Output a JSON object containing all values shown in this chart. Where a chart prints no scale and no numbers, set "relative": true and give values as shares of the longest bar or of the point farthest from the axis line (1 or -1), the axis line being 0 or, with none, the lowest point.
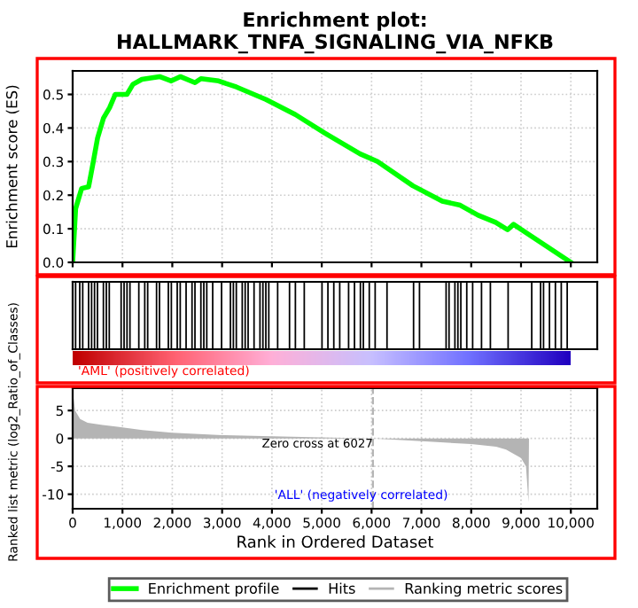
{
  "chart_data": [
    {
      "type": "line",
      "title": "Enrichment plot:\nHALLMARK_TNFA_SIGNALING_VIA_NFKB",
      "ylabel": "Enrichment score (ES)",
      "series": [
        {
          "name": "Enrichment profile",
          "color": "#00ff00",
          "x": [
            0,
            60,
            180,
            320,
            415,
            500,
            620,
            740,
            855,
            1090,
            1210,
            1390,
            1745,
            1980,
            2160,
            2455,
            2575,
            2930,
            3290,
            3880,
            4470,
            5060,
            5770,
            6120,
            6830,
            7420,
            7780,
            8140,
            8490,
            8730,
            8850,
            10000
          ],
          "values": [
            0,
            0.16,
            0.22,
            0.225,
            0.3,
            0.37,
            0.43,
            0.46,
            0.5,
            0.5,
            0.53,
            0.545,
            0.553,
            0.54,
            0.553,
            0.535,
            0.547,
            0.54,
            0.522,
            0.485,
            0.44,
            0.385,
            0.323,
            0.3,
            0.228,
            0.182,
            0.17,
            0.14,
            0.119,
            0.097,
            0.113,
            0
          ]
        }
      ],
      "xlim": [
        0,
        10530
      ],
      "xticks": [
        0,
        1000,
        2000,
        3000,
        4000,
        5000,
        6000,
        7000,
        8000,
        9000,
        10000
      ],
      "ylim": [
        0,
        0.57
      ],
      "yticks": [
        {
          "value": 0,
          "label": "0.0"
        },
        0.1,
        0.2,
        0.3,
        0.4,
        0.5
      ],
      "grid": true,
      "tick_labels": "y"
    },
    {
      "type": "bar",
      "relative": true,
      "ylabel": "Ranked list metric (log2_Ratio_of_Classes)",
      "annotations": [
        "'AML' (positively correlated)"
      ],
      "series": [
        {
          "name": "Hits",
          "color": "#000000",
          "x": [
            59,
            142,
            202,
            320,
            380,
            439,
            498,
            617,
            676,
            735,
            973,
            1032,
            1091,
            1150,
            1328,
            1447,
            1506,
            1684,
            1743,
            1921,
            1981,
            2099,
            2159,
            2277,
            2396,
            2455,
            2574,
            2633,
            2692,
            2811,
            2989,
            3167,
            3226,
            3285,
            3404,
            3463,
            3522,
            3641,
            3760,
            3819,
            3878,
            3937,
            4115,
            4353,
            4471,
            4649,
            5005,
            5124,
            5242,
            5361,
            5539,
            5657,
            5776,
            5835,
            5954,
            6072,
            6310,
            6843,
            6962,
            7496,
            7555,
            7673,
            7733,
            7792,
            7911,
            8029,
            8207,
            8385,
            8741,
            9215,
            9393,
            9452,
            9571,
            9690,
            9808,
            9927
          ],
          "values": [
            1,
            1,
            1,
            1,
            1,
            1,
            1,
            1,
            1,
            1,
            1,
            1,
            1,
            1,
            1,
            1,
            1,
            1,
            1,
            1,
            1,
            1,
            1,
            1,
            1,
            1,
            1,
            1,
            1,
            1,
            1,
            1,
            1,
            1,
            1,
            1,
            1,
            1,
            1,
            1,
            1,
            1,
            1,
            1,
            1,
            1,
            1,
            1,
            1,
            1,
            1,
            1,
            1,
            1,
            1,
            1,
            1,
            1,
            1,
            1,
            1,
            1,
            1,
            1,
            1,
            1,
            1,
            1,
            1,
            1,
            1,
            1,
            1,
            1,
            1,
            1
          ]
        }
      ],
      "xlim": [
        0,
        10530
      ],
      "tick_labels": false
    },
    {
      "type": "area",
      "xlabel": "Rank in Ordered Dataset",
      "annotations": [
        "'ALL' (negatively correlated)"
      ],
      "series": [
        {
          "name": "Ranking metric scores",
          "color": "#b4b4b4",
          "x": [
            0,
            50,
            150,
            300,
            600,
            900,
            1400,
            2000,
            3000,
            4000,
            5000,
            6027,
            7000,
            8000,
            8500,
            8700,
            9000,
            9100,
            9150,
            9160
          ],
          "values": [
            8.5,
            5,
            3.5,
            2.8,
            2.4,
            2.1,
            1.5,
            1.0,
            0.6,
            0.4,
            0.2,
            0,
            -0.5,
            -1.0,
            -1.5,
            -2,
            -3.5,
            -5,
            -11.5,
            0
          ]
        }
      ],
      "ref_lines": [
        {
          "axis": "x",
          "value": 6027,
          "label": "Zero cross at 6027",
          "color": "#b4b4b4",
          "line_style": "dashed"
        }
      ],
      "xlim": [
        0,
        10530
      ],
      "xticks": [
        0,
        {
          "value": 1000,
          "label": "1,000"
        },
        {
          "value": 2000,
          "label": "2,000"
        },
        {
          "value": 3000,
          "label": "3,000"
        },
        {
          "value": 4000,
          "label": "4,000"
        },
        {
          "value": 5000,
          "label": "5,000"
        },
        {
          "value": 6000,
          "label": "6,000"
        },
        {
          "value": 7000,
          "label": "7,000"
        },
        {
          "value": 8000,
          "label": "8,000"
        },
        {
          "value": 9000,
          "label": "9,000"
        },
        {
          "value": 10000,
          "label": "10,000"
        }
      ],
      "ylim": [
        -12.6,
        9
      ],
      "yticks": [
        5,
        0,
        -5,
        -10
      ],
      "grid": true,
      "legend": "bottom"
    }
  ]
}
